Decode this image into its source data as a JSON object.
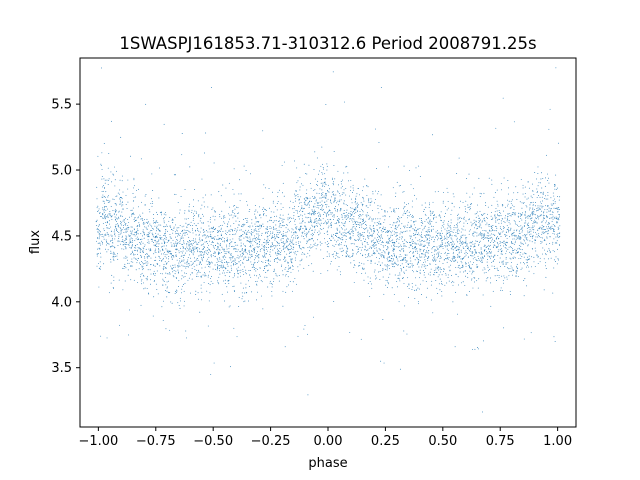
{
  "chart_data": {
    "type": "scatter",
    "title": "1SWASPJ161853.71-310312.6 Period 2008791.25s",
    "xlabel": "phase",
    "ylabel": "flux",
    "xlim": [
      -1.08,
      1.08
    ],
    "ylim": [
      3.05,
      5.85
    ],
    "grid": false,
    "x_ticks": [
      -1.0,
      -0.75,
      -0.5,
      -0.25,
      0.0,
      0.25,
      0.5,
      0.75,
      1.0
    ],
    "x_tick_labels": [
      "−1.00",
      "−0.75",
      "−0.50",
      "−0.25",
      "0.00",
      "0.25",
      "0.50",
      "0.75",
      "1.00"
    ],
    "y_ticks": [
      3.5,
      4.0,
      4.5,
      5.0,
      5.5
    ],
    "y_tick_labels": [
      "3.5",
      "4.0",
      "4.5",
      "5.0",
      "5.5"
    ],
    "point_color": "#1f77b4",
    "series": [
      {
        "values_note": "dense phase-folded light curve; representative samples",
        "x": [
          -1.0,
          -0.98,
          -0.96,
          -0.94,
          -0.92,
          -0.9,
          -0.88,
          -0.86,
          -0.84,
          -0.82,
          -0.8,
          -0.78,
          -0.76,
          -0.74,
          -0.72,
          -0.7,
          -0.68,
          -0.66,
          -0.64,
          -0.62,
          -0.6,
          -0.58,
          -0.56,
          -0.54,
          -0.52,
          -0.5,
          -0.48,
          -0.46,
          -0.44,
          -0.42,
          -0.4,
          -0.38,
          -0.36,
          -0.34,
          -0.32,
          -0.3,
          -0.28,
          -0.26,
          -0.24,
          -0.22,
          -0.2,
          -0.18,
          -0.16,
          -0.14,
          -0.12,
          -0.1,
          -0.08,
          -0.06,
          -0.04,
          -0.02,
          0.0,
          0.02,
          0.04,
          0.06,
          0.08,
          0.1,
          0.12,
          0.14,
          0.16,
          0.18,
          0.2,
          0.22,
          0.24,
          0.26,
          0.28,
          0.3,
          0.32,
          0.34,
          0.36,
          0.38,
          0.4,
          0.42,
          0.44,
          0.46,
          0.48,
          0.5,
          0.52,
          0.54,
          0.56,
          0.58,
          0.6,
          0.62,
          0.64,
          0.66,
          0.68,
          0.7,
          0.72,
          0.74,
          0.76,
          0.78,
          0.8,
          0.82,
          0.84,
          0.86,
          0.88,
          0.9,
          0.92,
          0.94,
          0.96,
          0.98,
          1.0
        ],
        "values": [
          4.55,
          4.7,
          4.6,
          4.5,
          4.55,
          4.6,
          4.5,
          4.45,
          4.5,
          4.45,
          4.42,
          4.4,
          4.45,
          4.42,
          4.4,
          4.38,
          4.42,
          4.4,
          4.38,
          4.4,
          4.42,
          4.4,
          4.38,
          4.42,
          4.4,
          4.45,
          4.42,
          4.4,
          4.38,
          4.42,
          4.4,
          4.38,
          4.4,
          4.42,
          4.4,
          4.42,
          4.45,
          4.45,
          4.42,
          4.45,
          4.48,
          4.42,
          4.45,
          4.5,
          4.55,
          4.6,
          4.55,
          4.6,
          4.65,
          4.7,
          4.6,
          4.65,
          4.55,
          4.6,
          4.65,
          4.55,
          4.6,
          4.5,
          4.55,
          4.5,
          4.45,
          4.5,
          4.45,
          4.42,
          4.45,
          4.42,
          4.4,
          4.42,
          4.45,
          4.42,
          4.4,
          4.42,
          4.45,
          4.42,
          4.4,
          4.42,
          4.45,
          4.4,
          4.42,
          4.45,
          4.42,
          4.4,
          4.42,
          4.45,
          4.42,
          4.4,
          4.45,
          4.42,
          4.45,
          4.48,
          4.45,
          4.5,
          4.55,
          4.5,
          4.55,
          4.6,
          4.65,
          4.55,
          4.6,
          4.65,
          4.6
        ]
      }
    ]
  }
}
